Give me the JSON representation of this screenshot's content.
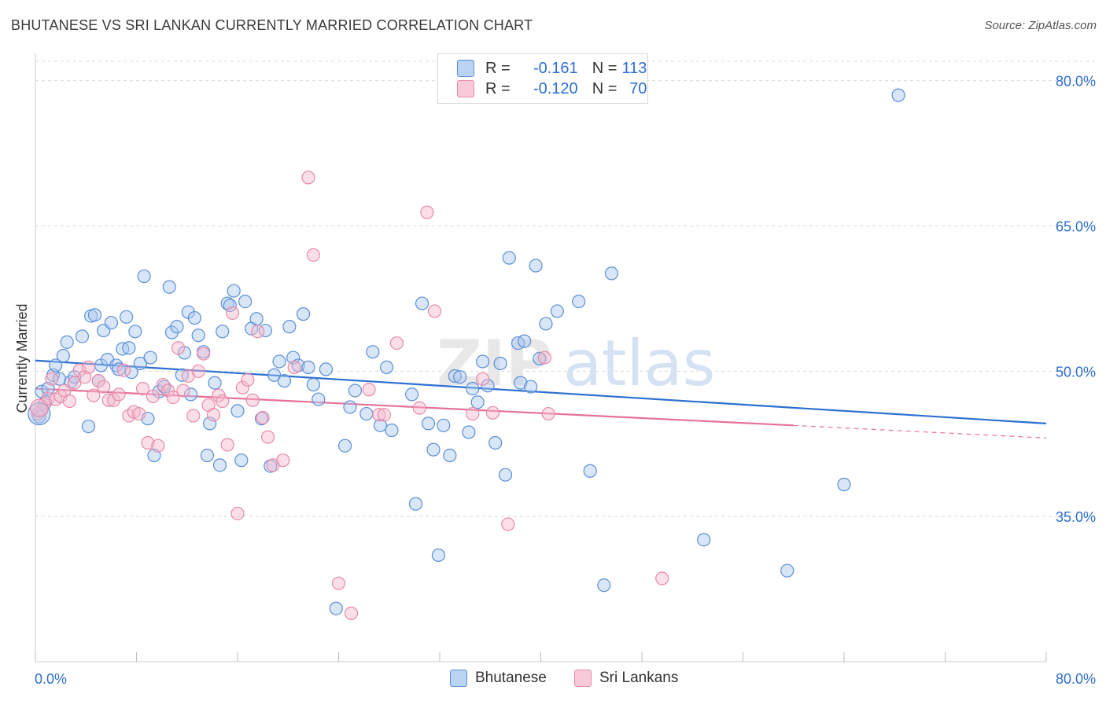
{
  "title": "BHUTANESE VS SRI LANKAN CURRENTLY MARRIED CORRELATION CHART",
  "source": "Source: ZipAtlas.com",
  "legend": {
    "r_label": "R =",
    "n_label": "N =",
    "rows": [
      {
        "r": "-0.161",
        "n": "113"
      },
      {
        "r": "-0.120",
        "n": "70"
      }
    ]
  },
  "colors": {
    "blue_fill": "#a9c8f0",
    "blue_stroke": "#5b8fd6",
    "blue_line": "#2c6fd1",
    "pink_fill": "#f5b8cc",
    "pink_stroke": "#e88aaa",
    "pink_line": "#e5709a",
    "axis_label": "#2e6ecf",
    "grid": "#d9d9d9"
  },
  "chart_data": {
    "type": "scatter",
    "title": "BHUTANESE VS SRI LANKAN CURRENTLY MARRIED CORRELATION CHART",
    "xlabel": "",
    "ylabel": "Currently Married",
    "xlim": [
      0,
      80
    ],
    "ylim": [
      20,
      82
    ],
    "x_tick_labels": [
      "0.0%",
      "80.0%"
    ],
    "y_ticks": [
      35,
      50,
      65,
      80
    ],
    "y_tick_labels": [
      "35.0%",
      "50.0%",
      "65.0%",
      "80.0%"
    ],
    "grid": true,
    "watermark": "ZIPatlas",
    "series": [
      {
        "name": "Bhutanese",
        "color": "#5b8fd6",
        "trend": {
          "x": [
            0,
            80
          ],
          "y": [
            51.1,
            44.6
          ]
        },
        "points": [
          [
            0.3,
            45.3
          ],
          [
            0.5,
            47.9
          ],
          [
            0.8,
            46.8
          ],
          [
            1.0,
            48.2
          ],
          [
            1.4,
            49.6
          ],
          [
            1.6,
            50.6
          ],
          [
            1.9,
            49.2
          ],
          [
            2.2,
            51.6
          ],
          [
            2.5,
            53.0
          ],
          [
            2.8,
            48.9
          ],
          [
            3.1,
            49.4
          ],
          [
            3.7,
            53.6
          ],
          [
            4.2,
            44.3
          ],
          [
            4.4,
            55.7
          ],
          [
            4.7,
            55.8
          ],
          [
            5.0,
            49.0
          ],
          [
            5.2,
            50.6
          ],
          [
            5.4,
            54.2
          ],
          [
            5.7,
            51.2
          ],
          [
            6.0,
            55.0
          ],
          [
            6.4,
            50.6
          ],
          [
            6.6,
            50.2
          ],
          [
            6.9,
            52.3
          ],
          [
            7.2,
            55.6
          ],
          [
            7.4,
            52.4
          ],
          [
            7.6,
            49.9
          ],
          [
            7.9,
            54.1
          ],
          [
            8.3,
            50.8
          ],
          [
            8.6,
            59.8
          ],
          [
            8.9,
            45.1
          ],
          [
            9.1,
            51.4
          ],
          [
            9.4,
            41.3
          ],
          [
            9.8,
            47.9
          ],
          [
            10.2,
            48.4
          ],
          [
            10.6,
            58.7
          ],
          [
            10.8,
            54.0
          ],
          [
            11.2,
            54.6
          ],
          [
            11.6,
            49.6
          ],
          [
            11.8,
            51.9
          ],
          [
            12.1,
            56.1
          ],
          [
            12.3,
            47.6
          ],
          [
            12.6,
            55.5
          ],
          [
            12.9,
            53.7
          ],
          [
            13.3,
            52.0
          ],
          [
            13.6,
            41.3
          ],
          [
            13.8,
            44.6
          ],
          [
            14.2,
            48.8
          ],
          [
            14.6,
            40.3
          ],
          [
            14.8,
            54.1
          ],
          [
            15.2,
            57.0
          ],
          [
            15.4,
            56.8
          ],
          [
            15.7,
            58.3
          ],
          [
            16.0,
            45.9
          ],
          [
            16.3,
            40.8
          ],
          [
            16.6,
            57.2
          ],
          [
            17.1,
            54.4
          ],
          [
            17.5,
            55.4
          ],
          [
            17.9,
            45.1
          ],
          [
            18.2,
            54.2
          ],
          [
            18.6,
            40.2
          ],
          [
            18.9,
            49.6
          ],
          [
            19.3,
            51.0
          ],
          [
            19.7,
            49.0
          ],
          [
            20.1,
            54.6
          ],
          [
            20.4,
            51.4
          ],
          [
            20.8,
            50.6
          ],
          [
            21.2,
            55.9
          ],
          [
            21.6,
            50.4
          ],
          [
            22.0,
            48.6
          ],
          [
            22.4,
            47.1
          ],
          [
            23.0,
            50.2
          ],
          [
            23.8,
            25.5
          ],
          [
            24.5,
            42.3
          ],
          [
            24.9,
            46.3
          ],
          [
            25.3,
            48.0
          ],
          [
            26.2,
            45.6
          ],
          [
            26.7,
            52.0
          ],
          [
            27.3,
            44.4
          ],
          [
            27.8,
            50.4
          ],
          [
            28.2,
            43.9
          ],
          [
            29.8,
            47.6
          ],
          [
            30.1,
            36.3
          ],
          [
            30.6,
            57.0
          ],
          [
            31.1,
            44.6
          ],
          [
            31.5,
            41.9
          ],
          [
            31.9,
            31.0
          ],
          [
            32.3,
            44.4
          ],
          [
            32.8,
            41.3
          ],
          [
            33.2,
            49.5
          ],
          [
            33.6,
            49.4
          ],
          [
            34.3,
            43.7
          ],
          [
            34.6,
            48.2
          ],
          [
            35.0,
            46.8
          ],
          [
            35.4,
            51.0
          ],
          [
            35.8,
            48.5
          ],
          [
            36.4,
            42.6
          ],
          [
            36.8,
            50.8
          ],
          [
            37.2,
            39.3
          ],
          [
            37.5,
            61.7
          ],
          [
            38.2,
            52.9
          ],
          [
            38.4,
            48.8
          ],
          [
            38.7,
            53.1
          ],
          [
            39.2,
            48.4
          ],
          [
            39.6,
            60.9
          ],
          [
            39.9,
            51.3
          ],
          [
            40.4,
            54.9
          ],
          [
            41.3,
            56.2
          ],
          [
            43.0,
            57.2
          ],
          [
            43.9,
            39.7
          ],
          [
            45.0,
            27.9
          ],
          [
            45.6,
            60.1
          ],
          [
            52.9,
            32.6
          ],
          [
            59.5,
            29.4
          ],
          [
            64.0,
            38.3
          ],
          [
            68.3,
            78.5
          ]
        ]
      },
      {
        "name": "Sri Lankans",
        "color": "#e88aaa",
        "trend": {
          "x": [
            0,
            60
          ],
          "y": [
            48.2,
            44.4
          ]
        },
        "trend_dashed": {
          "x": [
            60,
            80
          ],
          "y": [
            44.4,
            43.1
          ]
        },
        "points": [
          [
            0.2,
            45.6
          ],
          [
            0.5,
            46.0
          ],
          [
            0.7,
            46.6
          ],
          [
            1.0,
            47.2
          ],
          [
            1.3,
            49.2
          ],
          [
            1.6,
            47.1
          ],
          [
            2.0,
            47.4
          ],
          [
            2.3,
            48.0
          ],
          [
            2.7,
            46.9
          ],
          [
            3.1,
            48.8
          ],
          [
            3.5,
            50.1
          ],
          [
            3.9,
            49.4
          ],
          [
            4.2,
            50.4
          ],
          [
            4.6,
            47.5
          ],
          [
            5.0,
            49.0
          ],
          [
            5.4,
            48.4
          ],
          [
            5.8,
            47.0
          ],
          [
            6.2,
            47.0
          ],
          [
            6.6,
            47.6
          ],
          [
            7.0,
            50.1
          ],
          [
            7.4,
            45.4
          ],
          [
            7.8,
            45.8
          ],
          [
            8.2,
            45.6
          ],
          [
            8.5,
            48.2
          ],
          [
            8.9,
            42.6
          ],
          [
            9.3,
            47.4
          ],
          [
            9.7,
            42.3
          ],
          [
            10.1,
            48.6
          ],
          [
            10.5,
            48.0
          ],
          [
            10.9,
            47.3
          ],
          [
            11.3,
            52.4
          ],
          [
            11.7,
            48.0
          ],
          [
            12.1,
            49.5
          ],
          [
            12.5,
            45.4
          ],
          [
            12.9,
            50.0
          ],
          [
            13.3,
            51.8
          ],
          [
            13.7,
            46.5
          ],
          [
            14.1,
            45.5
          ],
          [
            14.5,
            47.5
          ],
          [
            14.8,
            46.9
          ],
          [
            15.2,
            42.4
          ],
          [
            15.6,
            56.0
          ],
          [
            16.0,
            35.3
          ],
          [
            16.4,
            48.3
          ],
          [
            16.8,
            49.1
          ],
          [
            17.2,
            47.0
          ],
          [
            17.6,
            54.1
          ],
          [
            18.0,
            45.2
          ],
          [
            18.4,
            43.2
          ],
          [
            18.8,
            40.3
          ],
          [
            19.6,
            40.8
          ],
          [
            20.5,
            50.4
          ],
          [
            21.6,
            70.0
          ],
          [
            22.0,
            62.0
          ],
          [
            24.0,
            28.1
          ],
          [
            25.0,
            25.0
          ],
          [
            26.4,
            48.1
          ],
          [
            27.2,
            45.5
          ],
          [
            27.6,
            45.5
          ],
          [
            28.6,
            52.9
          ],
          [
            30.4,
            46.2
          ],
          [
            31.0,
            66.4
          ],
          [
            31.6,
            56.2
          ],
          [
            34.6,
            45.6
          ],
          [
            35.4,
            49.2
          ],
          [
            36.2,
            45.7
          ],
          [
            37.4,
            34.2
          ],
          [
            40.3,
            51.4
          ],
          [
            40.6,
            45.6
          ],
          [
            49.6,
            28.6
          ]
        ]
      }
    ]
  }
}
